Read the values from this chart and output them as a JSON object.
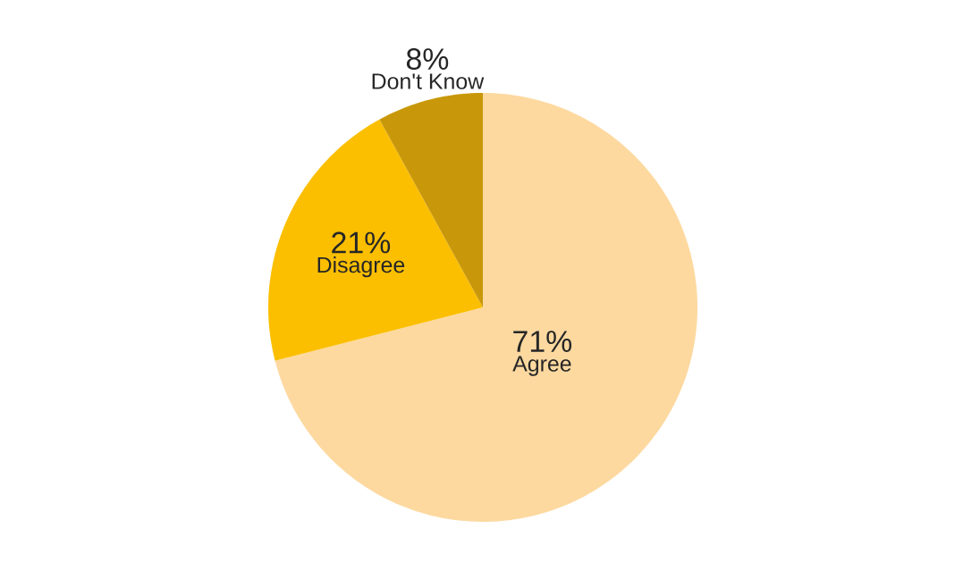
{
  "chart_data": {
    "type": "pie",
    "categories": [
      "Agree",
      "Disagree",
      "Don't Know"
    ],
    "values": [
      71,
      21,
      8
    ],
    "colors": [
      "#fdd9a0",
      "#fbbf00",
      "#c9980a"
    ],
    "value_labels": [
      "71%",
      "21%",
      "8%"
    ]
  }
}
